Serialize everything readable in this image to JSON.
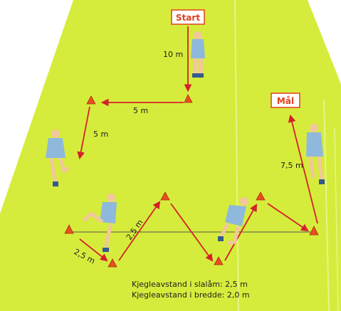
{
  "diagram": {
    "start_label": "Start",
    "goal_label": "Mål",
    "distances": {
      "start_leg": "10 m",
      "top_leg": "5 m",
      "side_leg": "5 m",
      "slalom_gap": "2,5 m",
      "slalom_diag": "2,5 m",
      "goal_leg": "7,5 m"
    },
    "notes": {
      "line1": "Kjegleavstand i slalåm: 2,5 m",
      "line2": "Kjegleavstand i bredde: 2,0 m"
    },
    "colors": {
      "field": "#d6ec3c",
      "arrow": "#d5202a",
      "cone": "#e8501e",
      "shirt": "#8eb8dc",
      "label_box_border": "#e0401e"
    }
  }
}
